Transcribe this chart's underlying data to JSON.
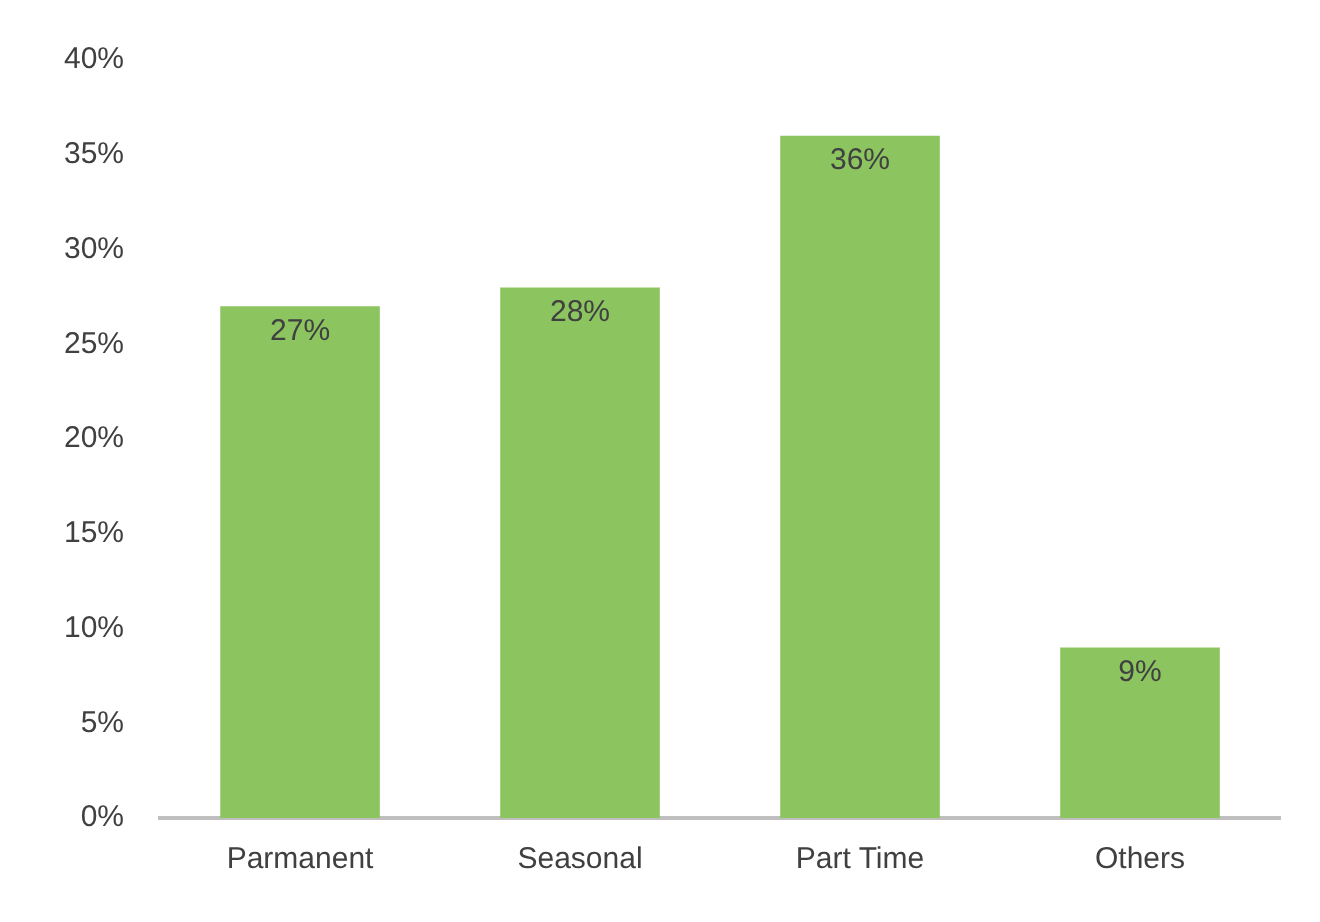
{
  "chart_data": {
    "type": "bar",
    "categories": [
      "Parmanent",
      "Seasonal",
      "Part Time",
      "Others"
    ],
    "values": [
      27,
      28,
      36,
      9
    ],
    "color": "#8cc560",
    "value_labels": [
      "27%",
      "28%",
      "36%",
      "9%"
    ],
    "ylim": [
      0,
      40
    ],
    "yticks": [
      {
        "value": 0,
        "label": "0%"
      },
      {
        "value": 5,
        "label": "5%"
      },
      {
        "value": 10,
        "label": "10%"
      },
      {
        "value": 15,
        "label": "15%"
      },
      {
        "value": 20,
        "label": "20%"
      },
      {
        "value": 25,
        "label": "25%"
      },
      {
        "value": 30,
        "label": "30%"
      },
      {
        "value": 35,
        "label": "35%"
      },
      {
        "value": 40,
        "label": "40%"
      }
    ],
    "grid": false,
    "legend": false
  }
}
